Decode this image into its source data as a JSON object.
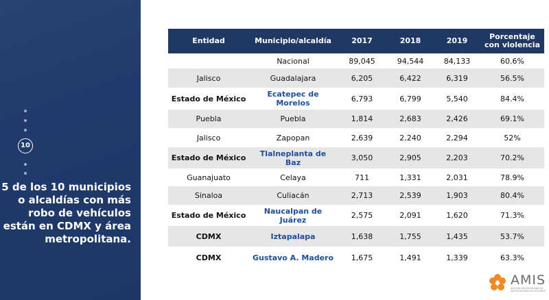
{
  "slide_number": "10",
  "heading": "5 de los 10 municipios o alcaldías con más robo de vehículos están en CDMX y área metropolitana.",
  "table": {
    "header": [
      "Entidad",
      "Municipio/alcaldía",
      "2017",
      "2018",
      "2019",
      "Porcentaje con violencia"
    ],
    "rows": [
      [
        "",
        "Nacional",
        "89,045",
        "94,544",
        "84,133",
        "60.6%"
      ],
      [
        "Jalisco",
        "Guadalajara",
        "6,205",
        "6,422",
        "6,319",
        "56.5%"
      ],
      [
        "Estado de México",
        "Ecatepec de Morelos",
        "6,793",
        "6,799",
        "5,540",
        "84.4%"
      ],
      [
        "Puebla",
        "Puebla",
        "1,814",
        "2,683",
        "2,426",
        "69.1%"
      ],
      [
        "Jalisco",
        "Zapopan",
        "2,639",
        "2,240",
        "2,294",
        "52%"
      ],
      [
        "Estado de México",
        "Tlalneplanta de Baz",
        "3,050",
        "2,905",
        "2,203",
        "70.2%"
      ],
      [
        "Guanajuato",
        "Celaya",
        "711",
        "1,331",
        "2,031",
        "78.9%"
      ],
      [
        "Sinaloa",
        "Culiacán",
        "2,713",
        "2,539",
        "1,903",
        "80.4%"
      ],
      [
        "Estado de México",
        "Naucalpan de Juárez",
        "2,575",
        "2,091",
        "1,620",
        "71.3%"
      ],
      [
        "CDMX",
        "Iztapalapa",
        "1,638",
        "1,755",
        "1,435",
        "53.7%"
      ],
      [
        "CDMX",
        "Gustavo A. Madero",
        "1,675",
        "1,491",
        "1,339",
        "63.3%"
      ]
    ]
  },
  "logo": {
    "name": "AMIS",
    "subtitle": "ASOCIACIÓN MEXICANA DE INSTITUCIONES DE SEGUROS"
  }
}
